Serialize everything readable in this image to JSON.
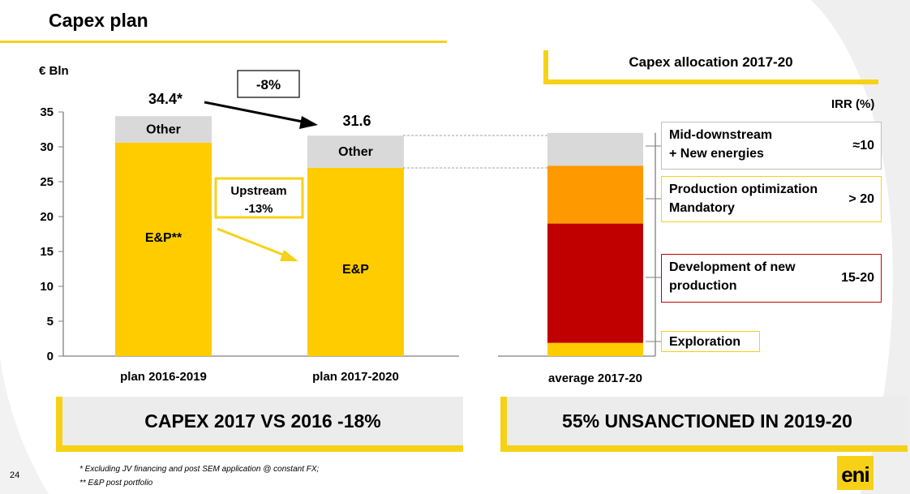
{
  "page": {
    "title": "Capex plan",
    "unit": "€ Bln",
    "page_number": "24",
    "footnotes": [
      "* Excluding JV financing and post SEM application @ constant FX;",
      "** E&P post portfolio"
    ],
    "logo_text": "eni"
  },
  "annotations": {
    "total_2016_2019": "34.4*",
    "total_2017_2020": "31.6",
    "change_total": "-8%",
    "upstream_change_line1": "Upstream",
    "upstream_change_line2": "-13%"
  },
  "allocation": {
    "title": "Capex allocation 2017-20",
    "irr_header": "IRR (%)",
    "items": [
      {
        "label_line1": "Mid-downstream",
        "label_line2": "+ New energies",
        "irr": "≈10",
        "color": "#d9d9d9",
        "border": "#bfbfbf"
      },
      {
        "label_line1": "Production optimization",
        "label_line2": "Mandatory",
        "irr": "> 20",
        "color": "#ff9900",
        "border": "#f7d117"
      },
      {
        "label_line1": "Development of new",
        "label_line2": "production",
        "irr": "15-20",
        "color": "#c00000",
        "border": "#c00000"
      },
      {
        "label_line1": "Exploration",
        "label_line2": "",
        "irr": "",
        "color": "#ffcc00",
        "border": "#f7d117"
      }
    ]
  },
  "banners": {
    "left": "CAPEX 2017 VS 2016 -18%",
    "right": "55% UNSANCTIONED IN 2019-20"
  },
  "colors": {
    "accent": "#f7d117",
    "ep": "#ffcc00",
    "other": "#d9d9d9"
  },
  "chart_data": [
    {
      "type": "bar",
      "stacked": true,
      "categories": [
        "plan 2016-2019",
        "plan 2017-2020"
      ],
      "series": [
        {
          "name": "E&P",
          "values": [
            30.6,
            27.0
          ],
          "labels": [
            "E&P**",
            "E&P"
          ],
          "color": "#ffcc00"
        },
        {
          "name": "Other",
          "values": [
            3.8,
            4.6
          ],
          "labels": [
            "Other",
            "Other"
          ],
          "color": "#d9d9d9"
        }
      ],
      "yticks": [
        0,
        5,
        10,
        15,
        20,
        25,
        30,
        35
      ],
      "ylim": [
        0,
        35
      ],
      "ylabel": "€ Bln"
    },
    {
      "type": "bar",
      "stacked": true,
      "categories": [
        "average 2017-20"
      ],
      "series": [
        {
          "name": "Exploration",
          "values": [
            1.9
          ],
          "color": "#ffcc00"
        },
        {
          "name": "Development of new production",
          "values": [
            17.1
          ],
          "color": "#c00000"
        },
        {
          "name": "Production optimization Mandatory",
          "values": [
            8.3
          ],
          "color": "#ff9900"
        },
        {
          "name": "Mid-downstream + New energies",
          "values": [
            4.7
          ],
          "color": "#d9d9d9"
        }
      ],
      "ylim": [
        0,
        35
      ]
    }
  ]
}
